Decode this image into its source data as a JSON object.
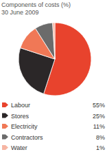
{
  "chart_data": {
    "type": "pie",
    "title": "Components of costs (%)",
    "subtitle": "30 June 2009",
    "categories": [
      "Labour",
      "Stores",
      "Electricity",
      "Contractors",
      "Water"
    ],
    "values": [
      55,
      25,
      11,
      8,
      1
    ],
    "value_labels": [
      "55%",
      "25%",
      "11%",
      "8%",
      "1%"
    ],
    "colors": [
      "#e8432d",
      "#2b2728",
      "#f07856",
      "#6b6b6b",
      "#f6b5a3"
    ],
    "legend": "bottom"
  }
}
